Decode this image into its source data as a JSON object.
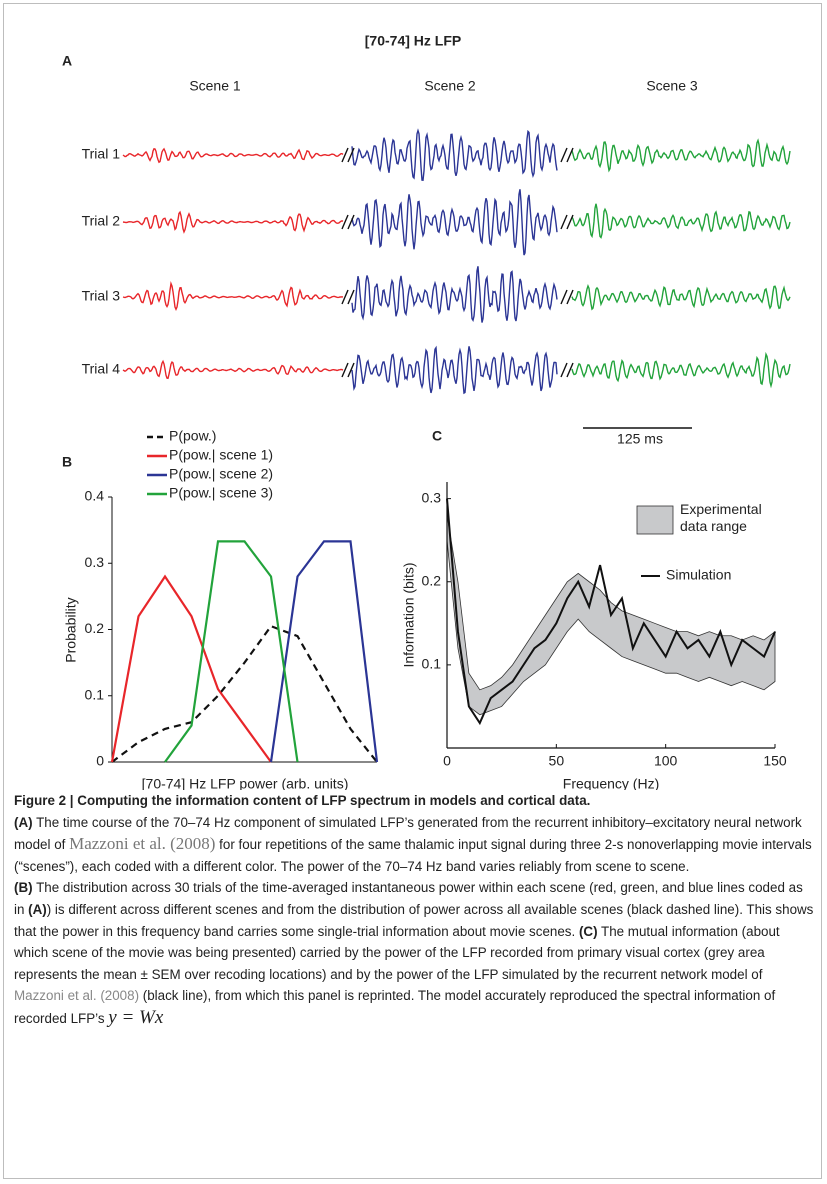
{
  "panel_a": {
    "title": "[70-74] Hz LFP",
    "label": "A",
    "scenes": [
      {
        "name": "Scene 1",
        "color": "#e8262a"
      },
      {
        "name": "Scene 2",
        "color": "#2b3595"
      },
      {
        "name": "Scene 3",
        "color": "#22a33b"
      }
    ],
    "trials": [
      "Trial 1",
      "Trial 2",
      "Trial 3",
      "Trial 4"
    ],
    "scale_bar": "125 ms"
  },
  "chart_data": [
    {
      "type": "line",
      "panel_label": "B",
      "x_label": "[70-74] Hz LFP power (arb. units)",
      "y_label": "Probability",
      "categories": [
        null,
        null,
        null,
        null,
        null,
        null,
        null,
        null,
        null,
        null,
        null
      ],
      "ylim": [
        0,
        0.4
      ],
      "yticks": [
        0,
        0.1,
        0.2,
        0.3,
        0.4
      ],
      "series": [
        {
          "name": "P(pow.)",
          "color": "#111111",
          "linestyle": "dashed",
          "values": [
            0,
            0.03,
            0.05,
            0.06,
            0.1,
            0.15,
            0.205,
            0.19,
            0.12,
            0.05,
            0
          ]
        },
        {
          "name": "P(pow.| scene 1)",
          "color": "#e8262a",
          "values": [
            0,
            0.22,
            0.28,
            0.22,
            0.11,
            0.055,
            0,
            null,
            null,
            null,
            null
          ]
        },
        {
          "name": "P(pow.| scene 2)",
          "color": "#2b3595",
          "values": [
            null,
            null,
            null,
            null,
            null,
            null,
            0,
            0.28,
            0.333,
            0.333,
            0
          ]
        },
        {
          "name": "P(pow.| scene 3)",
          "color": "#22a33b",
          "values": [
            null,
            null,
            0,
            0.055,
            0.333,
            0.333,
            0.28,
            0,
            null,
            null,
            null
          ]
        }
      ]
    },
    {
      "type": "line",
      "panel_label": "C",
      "x_label": "Frequency (Hz)",
      "y_label": "Information (bits)",
      "x": [
        0,
        5,
        10,
        15,
        20,
        25,
        30,
        35,
        40,
        45,
        50,
        55,
        60,
        65,
        70,
        75,
        80,
        85,
        90,
        95,
        100,
        105,
        110,
        115,
        120,
        125,
        130,
        135,
        140,
        145,
        150
      ],
      "xlim": [
        0,
        150
      ],
      "xticks": [
        0,
        50,
        100,
        150
      ],
      "ylim": [
        0,
        0.32
      ],
      "yticks": [
        0.1,
        0.2,
        0.3
      ],
      "series": [
        {
          "name": "Experimental data range",
          "color": "#c8c9cb",
          "lower": [
            0.25,
            0.12,
            0.05,
            0.04,
            0.045,
            0.05,
            0.065,
            0.08,
            0.09,
            0.1,
            0.12,
            0.14,
            0.155,
            0.14,
            0.13,
            0.12,
            0.11,
            0.105,
            0.1,
            0.095,
            0.09,
            0.09,
            0.085,
            0.08,
            0.085,
            0.08,
            0.075,
            0.08,
            0.075,
            0.07,
            0.08
          ],
          "upper": [
            0.28,
            0.2,
            0.09,
            0.07,
            0.075,
            0.085,
            0.1,
            0.12,
            0.14,
            0.16,
            0.18,
            0.2,
            0.21,
            0.2,
            0.19,
            0.175,
            0.165,
            0.16,
            0.155,
            0.15,
            0.145,
            0.14,
            0.14,
            0.135,
            0.14,
            0.135,
            0.135,
            0.13,
            0.135,
            0.13,
            0.14
          ]
        },
        {
          "name": "Simulation",
          "color": "#111111",
          "values": [
            0.3,
            0.14,
            0.05,
            0.03,
            0.06,
            0.07,
            0.08,
            0.1,
            0.12,
            0.13,
            0.15,
            0.18,
            0.2,
            0.17,
            0.22,
            0.16,
            0.18,
            0.12,
            0.15,
            0.13,
            0.11,
            0.14,
            0.12,
            0.13,
            0.11,
            0.14,
            0.1,
            0.13,
            0.12,
            0.11,
            0.14
          ]
        }
      ]
    }
  ],
  "caption": {
    "segments": [
      "Figure 2 | Computing the information content of LFP spectrum in models and cortical data.",
      "(A)",
      " The time course of the 70–74 Hz component of simulated LFP’s generated from the recurrent inhibitory–excitatory neural network model of ",
      "Mazzoni et al. (2008)",
      " for four repetitions of the same thalamic input signal during three 2-s nonoverlapping movie intervals (“scenes”), each coded with a different color. The power of the 70–74 Hz band varies reliably from scene to scene.",
      "(B)",
      " The distribution across 30 trials of the time-averaged instantaneous power within each scene (red, green, and blue lines coded as in ",
      "(A)",
      ") is different across different scenes and from the distribution of power across all available scenes (black dashed line). This shows that the power in this frequency band carries some single-trial information about movie scenes. ",
      "(C)",
      " The mutual information (about which scene of the movie was being presented) carried by the power of the LFP recorded from primary visual cortex (grey area represents the mean ± SEM over recoding locations) and by the power of the LFP simulated by the recurrent network model of ",
      "Mazzoni et al. (2008)",
      " (black line), from which this panel is reprinted. The model accurately reproduced the spectral information of recorded LFP’s ",
      "y = Wx"
    ]
  }
}
